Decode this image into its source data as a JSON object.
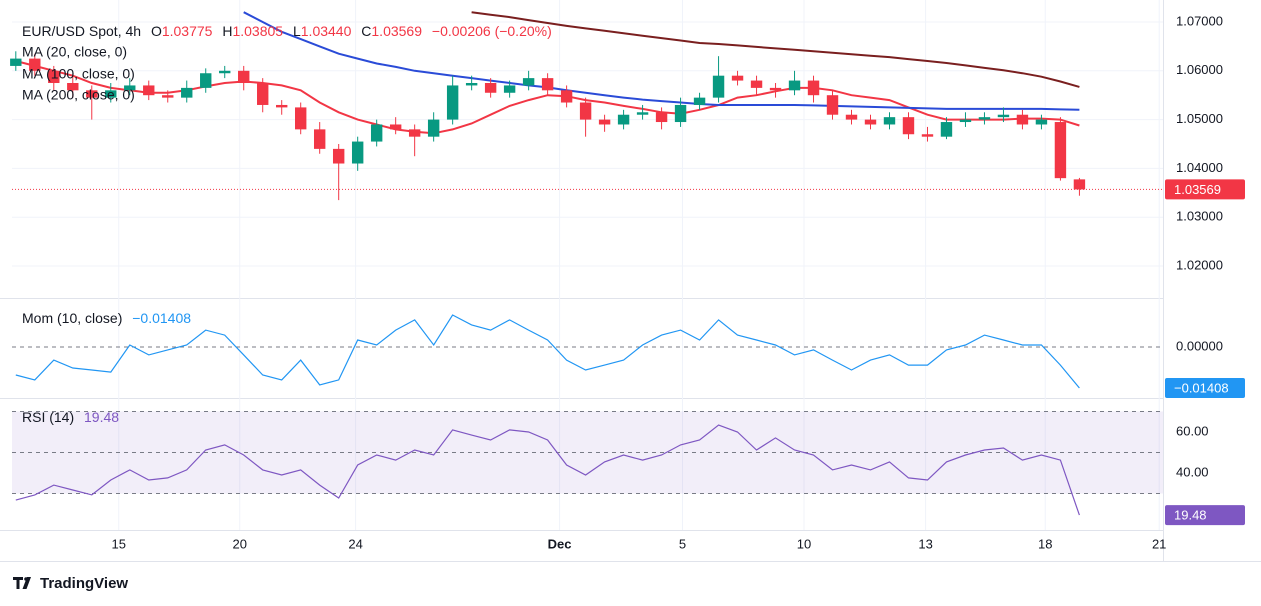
{
  "header": {
    "symbol": "EUR/USD Spot, 4h",
    "ohlc_letters": [
      "O",
      "H",
      "L",
      "C"
    ],
    "low_label": "1.03440",
    "change_label": "−0.00206 (−0.20%)"
  },
  "branding": "TradingView",
  "chart_data": [
    {
      "type": "candlestick",
      "x": [
        0,
        1,
        2,
        3,
        4,
        5,
        6,
        7,
        8,
        9,
        10,
        11,
        12,
        13,
        14,
        15,
        16,
        17,
        18,
        19,
        20,
        21,
        22,
        23,
        24,
        25,
        26,
        27,
        28,
        29,
        30,
        31,
        32,
        33,
        34,
        35,
        36,
        37,
        38,
        39,
        40,
        41,
        42,
        43,
        44,
        45,
        46,
        47,
        48,
        49,
        50,
        51,
        52,
        53,
        54,
        55,
        56
      ],
      "xlim": [
        -0.2,
        60.4
      ],
      "xticks": [
        {
          "value": 5.42,
          "label": "15"
        },
        {
          "value": 11.79,
          "label": "20"
        },
        {
          "value": 17.89,
          "label": "24"
        },
        {
          "value": 28.63,
          "label": "Dec"
        },
        {
          "value": 35.1,
          "label": "5"
        },
        {
          "value": 41.5,
          "label": "10"
        },
        {
          "value": 47.9,
          "label": "13"
        },
        {
          "value": 54.2,
          "label": "18"
        },
        {
          "value": 60.2,
          "label": "21"
        }
      ],
      "ylim": [
        1.01344,
        1.07451
      ],
      "yticks": [
        {
          "value": 1.02,
          "label": "1.02000"
        },
        {
          "value": 1.03,
          "label": "1.03000"
        },
        {
          "value": 1.04,
          "label": "1.04000"
        },
        {
          "value": 1.05,
          "label": "1.05000"
        },
        {
          "value": 1.06,
          "label": "1.06000"
        },
        {
          "value": 1.07,
          "label": "1.07000"
        }
      ],
      "grid": true,
      "up_color": "#089981",
      "down_color": "#f23645",
      "open": [
        1.061,
        1.0625,
        1.06,
        1.0575,
        1.056,
        1.0545,
        1.056,
        1.057,
        1.055,
        1.0545,
        1.0565,
        1.0595,
        1.06,
        1.0575,
        1.053,
        1.0525,
        1.048,
        1.044,
        1.041,
        1.0455,
        1.049,
        1.048,
        1.0465,
        1.05,
        1.057,
        1.0575,
        1.0555,
        1.057,
        1.0585,
        1.056,
        1.0535,
        1.05,
        1.049,
        1.051,
        1.0515,
        1.0495,
        1.053,
        1.0545,
        1.059,
        1.058,
        1.0565,
        1.056,
        1.058,
        1.055,
        1.051,
        1.05,
        1.049,
        1.0505,
        1.047,
        1.0465,
        1.0495,
        1.05,
        1.0505,
        1.051,
        1.049,
        1.0495,
        1.03775
      ],
      "high": [
        1.064,
        1.0635,
        1.061,
        1.059,
        1.057,
        1.0575,
        1.0585,
        1.058,
        1.056,
        1.058,
        1.0605,
        1.061,
        1.061,
        1.0585,
        1.054,
        1.0535,
        1.0495,
        1.045,
        1.0465,
        1.05,
        1.0505,
        1.049,
        1.0515,
        1.059,
        1.059,
        1.0585,
        1.058,
        1.06,
        1.0595,
        1.057,
        1.0545,
        1.051,
        1.052,
        1.053,
        1.0525,
        1.0545,
        1.0555,
        1.063,
        1.06,
        1.059,
        1.0575,
        1.06,
        1.059,
        1.056,
        1.052,
        1.051,
        1.0515,
        1.0515,
        1.0485,
        1.0505,
        1.0515,
        1.0515,
        1.0525,
        1.052,
        1.051,
        1.0505,
        1.03805
      ],
      "low": [
        1.06,
        1.059,
        1.056,
        1.0545,
        1.05,
        1.0535,
        1.055,
        1.054,
        1.0535,
        1.0535,
        1.0555,
        1.0585,
        1.056,
        1.0515,
        1.051,
        1.047,
        1.043,
        1.0335,
        1.0395,
        1.0445,
        1.047,
        1.0425,
        1.0455,
        1.049,
        1.056,
        1.0545,
        1.0545,
        1.056,
        1.055,
        1.0525,
        1.0465,
        1.0475,
        1.048,
        1.05,
        1.048,
        1.0485,
        1.052,
        1.0535,
        1.057,
        1.055,
        1.0545,
        1.055,
        1.0535,
        1.05,
        1.049,
        1.048,
        1.048,
        1.046,
        1.0455,
        1.046,
        1.0485,
        1.049,
        1.0495,
        1.048,
        1.048,
        1.0375,
        1.0344
      ],
      "close": [
        1.0625,
        1.06,
        1.0575,
        1.056,
        1.0545,
        1.056,
        1.057,
        1.055,
        1.0545,
        1.0565,
        1.0595,
        1.06,
        1.0575,
        1.053,
        1.0525,
        1.048,
        1.044,
        1.041,
        1.0455,
        1.049,
        1.048,
        1.0465,
        1.05,
        1.057,
        1.0575,
        1.0555,
        1.057,
        1.0585,
        1.056,
        1.0535,
        1.05,
        1.049,
        1.051,
        1.0515,
        1.0495,
        1.053,
        1.0545,
        1.059,
        1.058,
        1.0565,
        1.056,
        1.058,
        1.055,
        1.051,
        1.05,
        1.049,
        1.0505,
        1.047,
        1.0465,
        1.0495,
        1.05,
        1.0505,
        1.051,
        1.049,
        1.05,
        1.038,
        1.03569
      ],
      "series": [
        {
          "name": "MA (20, close, 0)",
          "color": "#f23645",
          "values": [
            1.062,
            1.061,
            1.06,
            1.059,
            1.0575,
            1.0565,
            1.056,
            1.0555,
            1.0555,
            1.056,
            1.0568,
            1.0575,
            1.0578,
            1.0575,
            1.057,
            1.056,
            1.0535,
            1.0515,
            1.05,
            1.049,
            1.048,
            1.0475,
            1.0472,
            1.048,
            1.0492,
            1.051,
            1.0528,
            1.054,
            1.055,
            1.0548,
            1.054,
            1.0535,
            1.0528,
            1.0522,
            1.0515,
            1.0512,
            1.052,
            1.053,
            1.0545,
            1.055,
            1.0558,
            1.0565,
            1.0565,
            1.056,
            1.055,
            1.0545,
            1.054,
            1.0525,
            1.051,
            1.05,
            1.05,
            1.05,
            1.05,
            1.0502,
            1.0502,
            1.05,
            1.0488
          ]
        },
        {
          "name": "MA (100, close, 0)",
          "color": "#2a4bd7",
          "values": [
            null,
            null,
            null,
            null,
            null,
            null,
            null,
            null,
            null,
            null,
            null,
            null,
            1.072,
            1.07,
            1.068,
            1.0665,
            1.065,
            1.0635,
            1.0625,
            1.0615,
            1.0608,
            1.06,
            1.0595,
            1.059,
            1.0585,
            1.058,
            1.0575,
            1.057,
            1.0566,
            1.056,
            1.0555,
            1.055,
            1.0545,
            1.0541,
            1.0538,
            1.0535,
            1.0532,
            1.053,
            1.053,
            1.053,
            1.053,
            1.053,
            1.0529,
            1.0528,
            1.0527,
            1.0526,
            1.0525,
            1.0524,
            1.0523,
            1.0522,
            1.0522,
            1.0522,
            1.0522,
            1.0522,
            1.0522,
            1.0521,
            1.052
          ]
        },
        {
          "name": "MA (200, close, 0)",
          "color": "#7a1f1f",
          "values": [
            null,
            null,
            null,
            null,
            null,
            null,
            null,
            null,
            null,
            null,
            null,
            null,
            null,
            null,
            null,
            null,
            null,
            null,
            null,
            null,
            null,
            null,
            null,
            null,
            1.072,
            1.0715,
            1.071,
            1.0704,
            1.0698,
            1.0692,
            1.0687,
            1.0682,
            1.0677,
            1.0672,
            1.0667,
            1.0662,
            1.0657,
            1.0655,
            1.0652,
            1.0649,
            1.0646,
            1.0643,
            1.064,
            1.0637,
            1.0634,
            1.0631,
            1.0628,
            1.0624,
            1.062,
            1.0616,
            1.0611,
            1.0606,
            1.0601,
            1.0595,
            1.0588,
            1.0578,
            1.0567
          ]
        }
      ]
    },
    {
      "type": "line",
      "ylim": [
        -0.01751,
        0.01614
      ],
      "yticks": [
        {
          "value": 0,
          "label": "0.00000"
        }
      ],
      "tick_line": "dashed",
      "last_value_label": "−0.01408",
      "series": [
        {
          "name": "Mom (10, close)",
          "color": "#2196f3",
          "values": [
            -0.0096,
            -0.0113,
            -0.0045,
            -0.0072,
            -0.0079,
            -0.0086,
            0.0007,
            -0.0027,
            -0.001,
            0.0007,
            0.0058,
            0.0041,
            -0.0027,
            -0.0096,
            -0.0113,
            -0.0045,
            -0.013,
            -0.0113,
            0.0024,
            0.0007,
            0.0058,
            0.0093,
            0.0007,
            0.011,
            0.0076,
            0.0058,
            0.0093,
            0.0058,
            0.0024,
            -0.0045,
            -0.0079,
            -0.0062,
            -0.0045,
            0.0007,
            0.0041,
            0.0058,
            0.0024,
            0.0093,
            0.0041,
            0.0024,
            0.0007,
            -0.0027,
            -0.001,
            -0.0045,
            -0.0079,
            -0.0045,
            -0.0027,
            -0.0062,
            -0.0062,
            -0.001,
            0.0007,
            0.0041,
            0.0024,
            0.0007,
            0.0007,
            -0.0062,
            -0.01408
          ]
        }
      ]
    },
    {
      "type": "line",
      "ylim": [
        12.2,
        75.6
      ],
      "yticks": [
        {
          "value": 40,
          "label": "40.00"
        },
        {
          "value": 60,
          "label": "60.00"
        }
      ],
      "bands": [
        30,
        50,
        70
      ],
      "band_color": "#7e57c2",
      "series": [
        {
          "name": "RSI (14)",
          "color": "#7e57c2",
          "values": [
            26.8,
            29.3,
            34.1,
            31.7,
            29.3,
            36.6,
            41.5,
            36.6,
            37.6,
            41.5,
            51.2,
            53.7,
            48.8,
            41.5,
            39.0,
            41.5,
            34.1,
            27.8,
            43.9,
            48.8,
            46.3,
            51.2,
            48.8,
            61.0,
            58.5,
            56.1,
            61.0,
            60.0,
            56.1,
            43.9,
            39.0,
            45.4,
            48.8,
            46.3,
            48.8,
            53.7,
            56.1,
            63.4,
            60.0,
            51.2,
            57.1,
            51.2,
            48.8,
            41.5,
            43.9,
            41.5,
            45.4,
            37.6,
            36.6,
            45.4,
            48.8,
            51.2,
            52.2,
            46.3,
            48.8,
            46.3,
            19.48
          ]
        }
      ]
    }
  ]
}
